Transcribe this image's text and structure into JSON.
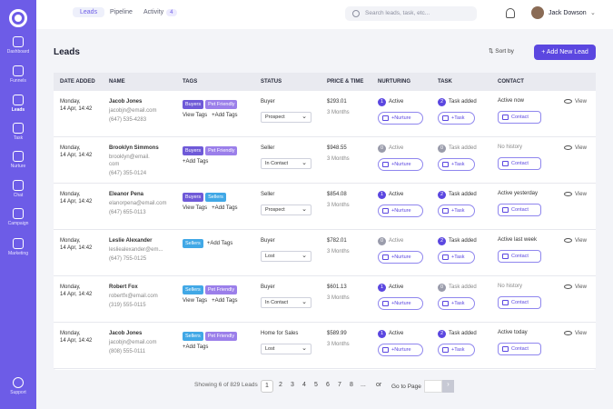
{
  "sidebar": {
    "items": [
      {
        "label": "Dashboard",
        "icon": "dashboard-icon"
      },
      {
        "label": "Funnels",
        "icon": "funnel-icon"
      },
      {
        "label": "Leads",
        "icon": "users-icon"
      },
      {
        "label": "Task",
        "icon": "task-icon"
      },
      {
        "label": "Nurture",
        "icon": "send-icon"
      },
      {
        "label": "Chat",
        "icon": "chat-icon"
      },
      {
        "label": "Campaign",
        "icon": "campaign-icon"
      },
      {
        "label": "Marketing",
        "icon": "mail-icon"
      }
    ],
    "support": "Support"
  },
  "topbar": {
    "tabs": [
      {
        "label": "Leads"
      },
      {
        "label": "Pipeline"
      },
      {
        "label": "Activity",
        "badge": "4"
      }
    ],
    "search_placeholder": "Search leads, task, etc...",
    "user": "Jack Dowson"
  },
  "page": {
    "title": "Leads",
    "sort_label": "Sort by",
    "add_button": "+ Add New Lead"
  },
  "columns": [
    "DATE ADDED",
    "NAME",
    "TAGS",
    "STATUS",
    "PRICE & TIME",
    "NURTURING",
    "TASK",
    "CONTACT"
  ],
  "rows": [
    {
      "date": "Monday,",
      "time": "14 Apr, 14:42",
      "name": "Jacob Jones",
      "email": "jacobjn@email.com",
      "phone": "(647) 535-4283",
      "tags": [
        "Buyers",
        "Pet Friendly"
      ],
      "tag_action": "View Tags",
      "tag_add": "+Add Tags",
      "status": "Buyer",
      "stage": "Prospect",
      "price": "$293.01",
      "months": "3 Months",
      "nurt_n": "1",
      "nurt": "Active",
      "nurt_btn": "+Nurture",
      "task_n": "2",
      "task": "Task added",
      "task_btn": "+Task",
      "contact": "Active now",
      "contact_btn": "Contact",
      "view": "View"
    },
    {
      "date": "Monday,",
      "time": "14 Apr, 14:42",
      "name": "Brooklyn Simmons",
      "email": "brooklyn@email.",
      "email2": "com",
      "phone": "(647) 355-0124",
      "tags": [
        "Buyers",
        "Pet Friendly"
      ],
      "tag_action": "",
      "tag_add": "+Add Tags",
      "status": "Seller",
      "stage": "In Contact",
      "price": "$948.55",
      "months": "3 Months",
      "nurt_n": "0",
      "nurt": "Active",
      "nurt_btn": "+Nurture",
      "task_n": "0",
      "task": "Task added",
      "task_btn": "+Task",
      "contact": "No history",
      "contact_btn": "Contact",
      "view": "View"
    },
    {
      "date": "Monday,",
      "time": "14 Apr, 14:42",
      "name": "Eleanor Pena",
      "email": "elanorpena@email.com",
      "phone": "(647) 655-0113",
      "tags": [
        "Buyers",
        "Sellers"
      ],
      "tag_action": "View Tags",
      "tag_add": "+Add Tags",
      "status": "Seller",
      "stage": "Prospect",
      "price": "$854.08",
      "months": "3 Months",
      "nurt_n": "1",
      "nurt": "Active",
      "nurt_btn": "+Nurture",
      "task_n": "2",
      "task": "Task added",
      "task_btn": "+Task",
      "contact": "Active yesterday",
      "contact_btn": "Contact",
      "view": "View"
    },
    {
      "date": "Monday,",
      "time": "14 Apr, 14:42",
      "name": "Leslie Alexander",
      "email": "lesliealexander@em...",
      "phone": "(647) 755-0125",
      "tags": [
        "Sellers"
      ],
      "tag_action": "",
      "tag_add": "+Add Tags",
      "status": "Buyer",
      "stage": "Lost",
      "price": "$782.01",
      "months": "3 Months",
      "nurt_n": "0",
      "nurt": "Active",
      "nurt_btn": "+Nurture",
      "task_n": "2",
      "task": "Task added",
      "task_btn": "+Task",
      "contact": "Active last week",
      "contact_btn": "Contact",
      "view": "View"
    },
    {
      "date": "Monday,",
      "time": "14 Apr, 14:42",
      "name": "Robert Fox",
      "email": "robertfx@email.com",
      "phone": "(319) 555-0115",
      "tags": [
        "Sellers",
        "Pet Friendly"
      ],
      "tag_action": "View Tags",
      "tag_add": "+Add Tags",
      "status": "Buyer",
      "stage": "In Contact",
      "price": "$601.13",
      "months": "3 Months",
      "nurt_n": "1",
      "nurt": "Active",
      "nurt_btn": "+Nurture",
      "task_n": "0",
      "task": "Task added",
      "task_btn": "+Task",
      "contact": "No history",
      "contact_btn": "Contact",
      "view": "View"
    },
    {
      "date": "Monday,",
      "time": "14 Apr, 14:42",
      "name": "Jacob Jones",
      "email": "jacobjn@email.com",
      "phone": "(808) 555-0111",
      "tags": [
        "Sellers",
        "Pet Friendly"
      ],
      "tag_action": "",
      "tag_add": "+Add Tags",
      "status": "Home for Sales",
      "stage": "Lost",
      "price": "$589.99",
      "months": "3 Months",
      "nurt_n": "1",
      "nurt": "Active",
      "nurt_btn": "+Nurture",
      "task_n": "2",
      "task": "Task added",
      "task_btn": "+Task",
      "contact": "Active today",
      "contact_btn": "Contact",
      "view": "View"
    }
  ],
  "footer": {
    "showing": "Showing 6 of 829 Leads",
    "pages": [
      "1",
      "2",
      "3",
      "4",
      "5",
      "6",
      "7",
      "8",
      "...",
      "or"
    ],
    "goto": "Go to Page"
  }
}
